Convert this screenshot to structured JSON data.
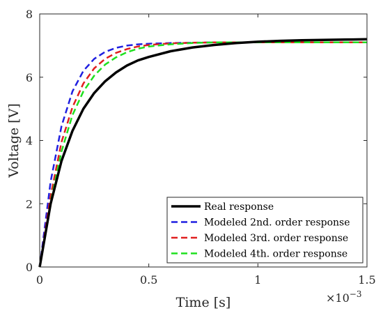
{
  "chart_data": {
    "type": "line",
    "xlabel": "Time [s]",
    "ylabel": "Voltage [V]",
    "xlim": [
      0,
      0.0015
    ],
    "ylim": [
      0,
      8
    ],
    "x_tick_labels": [
      "0",
      "0.5",
      "1",
      "1.5"
    ],
    "x_tick_values": [
      0,
      0.0005,
      0.001,
      0.0015
    ],
    "y_tick_labels": [
      "0",
      "2",
      "4",
      "6",
      "8"
    ],
    "y_tick_values": [
      0,
      2,
      4,
      6,
      8
    ],
    "x_multiplier": {
      "base": "×10",
      "exponent": "−3"
    },
    "grid": false,
    "legend_position": "bottom-right",
    "x": [
      0,
      5e-05,
      0.0001,
      0.00015,
      0.0002,
      0.00025,
      0.0003,
      0.00035,
      0.0004,
      0.00045,
      0.0005,
      0.0006,
      0.0007,
      0.0008,
      0.0009,
      0.001,
      0.0011,
      0.0012,
      0.0013,
      0.0014,
      0.0015
    ],
    "series": [
      {
        "name": "Real response",
        "color": "#000000",
        "style": "solid",
        "values": [
          0.0,
          2.0,
          3.35,
          4.3,
          5.0,
          5.5,
          5.87,
          6.15,
          6.37,
          6.53,
          6.64,
          6.82,
          6.94,
          7.02,
          7.08,
          7.12,
          7.15,
          7.17,
          7.18,
          7.19,
          7.2
        ]
      },
      {
        "name": "Modeled 2nd. order response",
        "color": "#1f1fe0",
        "style": "dashed",
        "values": [
          0.0,
          2.7,
          4.45,
          5.55,
          6.2,
          6.58,
          6.8,
          6.93,
          7.0,
          7.04,
          7.06,
          7.08,
          7.09,
          7.1,
          7.1,
          7.1,
          7.1,
          7.1,
          7.1,
          7.1,
          7.1
        ]
      },
      {
        "name": "Modeled 3rd. order response",
        "color": "#e01f1f",
        "style": "dashed",
        "values": [
          0.0,
          2.25,
          3.95,
          5.05,
          5.8,
          6.28,
          6.58,
          6.77,
          6.89,
          6.97,
          7.02,
          7.07,
          7.09,
          7.1,
          7.1,
          7.1,
          7.1,
          7.1,
          7.1,
          7.1,
          7.1
        ]
      },
      {
        "name": "Modeled 4th. order response",
        "color": "#1fe01f",
        "style": "dashed",
        "values": [
          0.0,
          2.05,
          3.65,
          4.8,
          5.55,
          6.05,
          6.4,
          6.63,
          6.79,
          6.9,
          6.97,
          7.04,
          7.08,
          7.1,
          7.1,
          7.1,
          7.1,
          7.1,
          7.1,
          7.1,
          7.1
        ]
      }
    ]
  }
}
